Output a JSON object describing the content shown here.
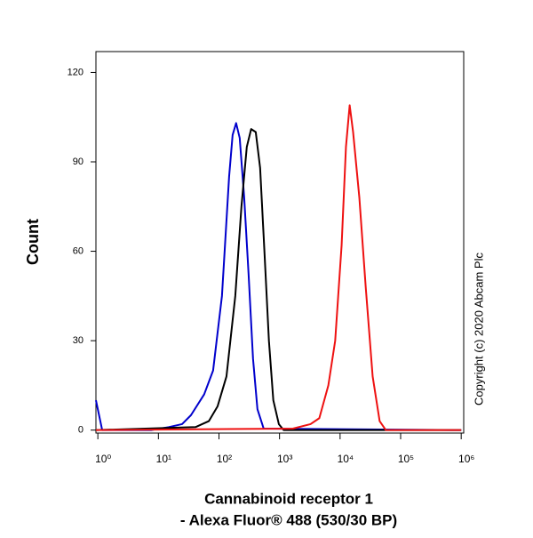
{
  "chart_data": {
    "type": "line",
    "xlabel": [
      "Cannabinoid receptor 1",
      "- Alexa Fluor® 488 (530/30 BP)"
    ],
    "ylabel": "Count",
    "annotation": "Copyright (c) 2020 Abcam Plc",
    "xscale": "log",
    "xlim": [
      0.93,
      1100000
    ],
    "ylim": [
      -1,
      127
    ],
    "xticks": [
      {
        "value": 1,
        "label": "10⁰"
      },
      {
        "value": 10,
        "label": "10¹"
      },
      {
        "value": 100,
        "label": "10²"
      },
      {
        "value": 1000,
        "label": "10³"
      },
      {
        "value": 10000,
        "label": "10⁴"
      },
      {
        "value": 100000,
        "label": "10⁵"
      },
      {
        "value": 1000000,
        "label": "10⁶"
      }
    ],
    "yticks": [
      0,
      30,
      60,
      90,
      120
    ],
    "series": [
      {
        "color": "#0000cc",
        "x": [
          0.93,
          1.18,
          7.6,
          14.8,
          24.6,
          34.5,
          57,
          80,
          112,
          147,
          168,
          192,
          220,
          261,
          309,
          365,
          432,
          547,
          1000000
        ],
        "values": [
          10,
          0,
          0,
          1,
          2,
          5,
          12,
          20,
          45,
          85,
          99,
          103,
          98,
          78,
          52,
          24,
          7,
          0.5,
          0
        ]
      },
      {
        "color": "#000000",
        "x": [
          0.93,
          41,
          68,
          95,
          133,
          186,
          235,
          288,
          340,
          405,
          478,
          563,
          668,
          790,
          975,
          1170,
          1000000
        ],
        "values": [
          0,
          1,
          3,
          8,
          18,
          45,
          75,
          95,
          101,
          100,
          88,
          60,
          30,
          10,
          2,
          0,
          0
        ]
      },
      {
        "color": "#ee1111",
        "x": [
          0.93,
          1660,
          3250,
          4540,
          6400,
          8300,
          10600,
          12500,
          14400,
          16400,
          20800,
          26500,
          34500,
          45000,
          57000,
          1000000
        ],
        "values": [
          0,
          0.5,
          2,
          4,
          15,
          30,
          62,
          95,
          109,
          100,
          78,
          48,
          18,
          3,
          0,
          0
        ]
      }
    ]
  }
}
